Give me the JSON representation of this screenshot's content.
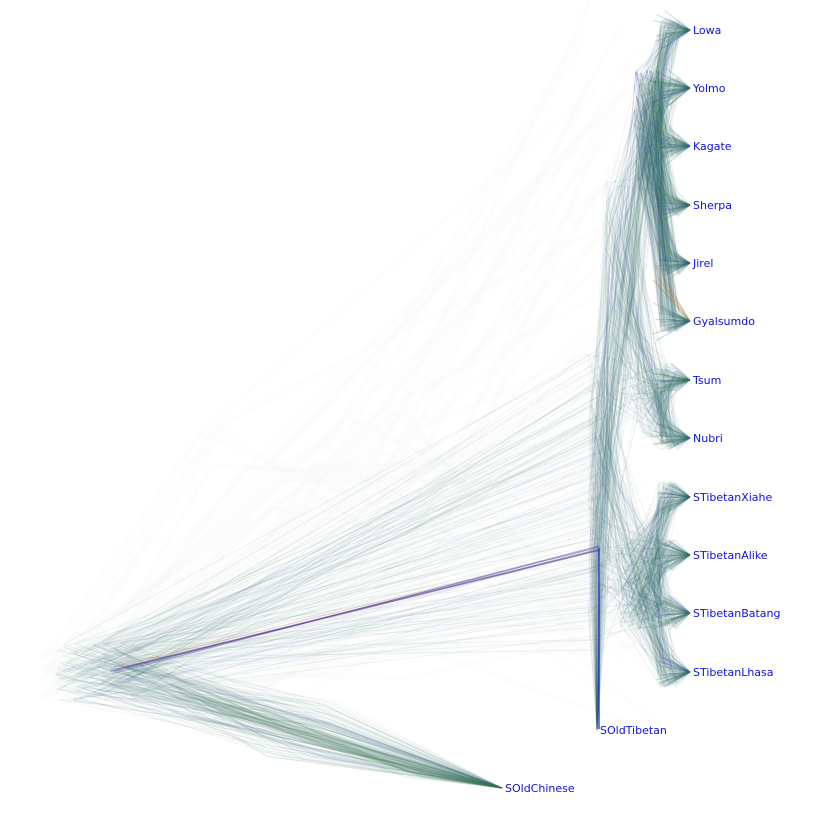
{
  "colors": {
    "label": "#1010e0",
    "root_line": "#1a1acc",
    "tree_green": "#3f7f4f",
    "tree_teal": "#2f6f7f",
    "tree_blue": "#3344bb",
    "tree_orange": "#c0702a"
  },
  "taxa": [
    {
      "id": "lowa",
      "label": "Lowa"
    },
    {
      "id": "yolmo",
      "label": "Yolmo"
    },
    {
      "id": "kagate",
      "label": "Kagate"
    },
    {
      "id": "sherpa",
      "label": "Sherpa"
    },
    {
      "id": "jirel",
      "label": "Jirel"
    },
    {
      "id": "gyalsumdo",
      "label": "Gyalsumdo"
    },
    {
      "id": "tsum",
      "label": "Tsum"
    },
    {
      "id": "nubri",
      "label": "Nubri"
    },
    {
      "id": "stibetanxiahe",
      "label": "STibetanXiahe"
    },
    {
      "id": "stibetanalike",
      "label": "STibetanAlike"
    },
    {
      "id": "stibetanbatang",
      "label": "STibetanBatang"
    },
    {
      "id": "stibetanlhasa",
      "label": "STibetanLhasa"
    },
    {
      "id": "soldtibetan",
      "label": "SOldTibetan"
    },
    {
      "id": "soldchinese",
      "label": "SOldChinese"
    }
  ]
}
